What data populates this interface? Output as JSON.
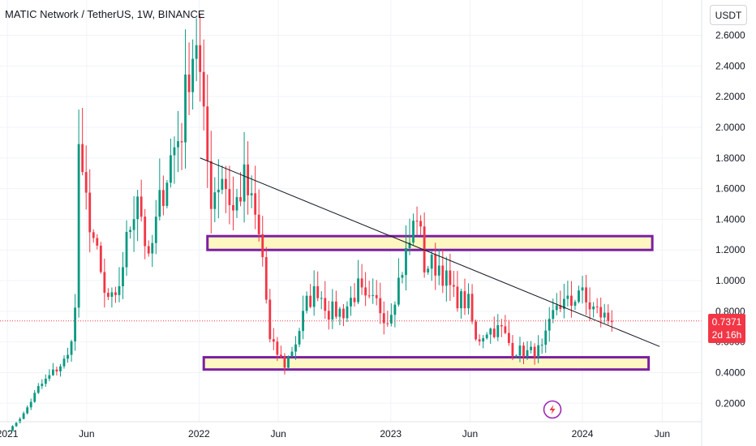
{
  "header": {
    "title": "MATIC Network / TetherUS, 1W, BINANCE"
  },
  "currency_button": {
    "label": "USDT"
  },
  "price_badge": {
    "price": "0.7371",
    "countdown": "2d 16h"
  },
  "colors": {
    "up": "#089981",
    "down": "#f23645",
    "zone_fill": "#fff7c2",
    "zone_border": "#7b1fa2",
    "trendline": "#131722",
    "price_line": "#f23645"
  },
  "chart_data": {
    "type": "candlestick",
    "interval": "1W",
    "price_axis": {
      "ticks": [
        "2.6000",
        "2.4000",
        "2.2000",
        "2.0000",
        "1.8000",
        "1.6000",
        "1.4000",
        "1.2000",
        "1.0000",
        "0.8000",
        "0.6000",
        "0.4000",
        "0.2000"
      ],
      "range": [
        0.08,
        2.83
      ]
    },
    "time_axis": {
      "ticks": [
        "2021",
        "Jun",
        "2022",
        "Jun",
        "2023",
        "Jun",
        "2024",
        "Jun"
      ],
      "tick_times": [
        "2021-01-01",
        "2021-06-01",
        "2022-01-01",
        "2022-06-01",
        "2023-01-01",
        "2023-06-01",
        "2024-01-01",
        "2024-06-01"
      ],
      "range": [
        "2020-12-18",
        "2024-08-15"
      ]
    },
    "current_price": 0.7371,
    "series": [
      {
        "type": "candles",
        "anchors": [
          [
            "2021-01-04",
            0.02
          ],
          [
            "2021-02-01",
            0.13
          ],
          [
            "2021-03-01",
            0.3
          ],
          [
            "2021-03-29",
            0.4
          ],
          [
            "2021-04-26",
            0.5
          ],
          [
            "2021-05-10",
            0.8
          ],
          [
            "2021-05-17",
            1.9
          ],
          [
            "2021-05-24",
            1.6
          ],
          [
            "2021-06-07",
            1.4
          ],
          [
            "2021-07-05",
            0.9
          ],
          [
            "2021-07-26",
            0.85
          ],
          [
            "2021-08-16",
            1.25
          ],
          [
            "2021-09-06",
            1.6
          ],
          [
            "2021-09-27",
            1.1
          ],
          [
            "2021-10-18",
            1.5
          ],
          [
            "2021-11-08",
            1.8
          ],
          [
            "2021-11-29",
            2.0
          ],
          [
            "2021-12-13",
            2.4
          ],
          [
            "2021-12-27",
            2.6
          ],
          [
            "2022-01-10",
            2.0
          ],
          [
            "2022-01-24",
            1.55
          ],
          [
            "2022-02-14",
            1.7
          ],
          [
            "2022-03-07",
            1.45
          ],
          [
            "2022-03-28",
            1.65
          ],
          [
            "2022-04-18",
            1.4
          ],
          [
            "2022-05-02",
            1.15
          ],
          [
            "2022-05-16",
            0.6
          ],
          [
            "2022-06-13",
            0.45
          ],
          [
            "2022-07-04",
            0.6
          ],
          [
            "2022-07-25",
            0.85
          ],
          [
            "2022-08-15",
            0.95
          ],
          [
            "2022-09-05",
            0.8
          ],
          [
            "2022-10-03",
            0.8
          ],
          [
            "2022-10-31",
            0.95
          ],
          [
            "2022-11-14",
            0.85
          ],
          [
            "2022-12-05",
            0.85
          ],
          [
            "2022-12-26",
            0.75
          ],
          [
            "2023-01-16",
            1.0
          ],
          [
            "2023-02-06",
            1.25
          ],
          [
            "2023-02-20",
            1.45
          ],
          [
            "2023-03-06",
            1.1
          ],
          [
            "2023-04-03",
            1.1
          ],
          [
            "2023-05-01",
            0.9
          ],
          [
            "2023-05-29",
            0.85
          ],
          [
            "2023-06-12",
            0.6
          ],
          [
            "2023-07-03",
            0.68
          ],
          [
            "2023-07-31",
            0.68
          ],
          [
            "2023-08-21",
            0.55
          ],
          [
            "2023-09-18",
            0.53
          ],
          [
            "2023-10-16",
            0.55
          ],
          [
            "2023-11-13",
            0.85
          ],
          [
            "2023-12-11",
            0.85
          ],
          [
            "2023-12-25",
            0.95
          ],
          [
            "2024-01-08",
            0.85
          ],
          [
            "2024-02-05",
            0.78
          ],
          [
            "2024-02-26",
            0.73
          ]
        ]
      },
      {
        "type": "trendline",
        "points": [
          [
            "2022-01-03",
            1.8
          ],
          [
            "2024-05-27",
            0.57
          ]
        ]
      },
      {
        "type": "zone",
        "label": "",
        "from": "2022-01-17",
        "to": "2024-05-13",
        "low": 1.2,
        "high": 1.29
      },
      {
        "type": "zone",
        "label": "",
        "from": "2022-01-10",
        "to": "2024-05-06",
        "low": 0.42,
        "high": 0.5
      }
    ]
  }
}
